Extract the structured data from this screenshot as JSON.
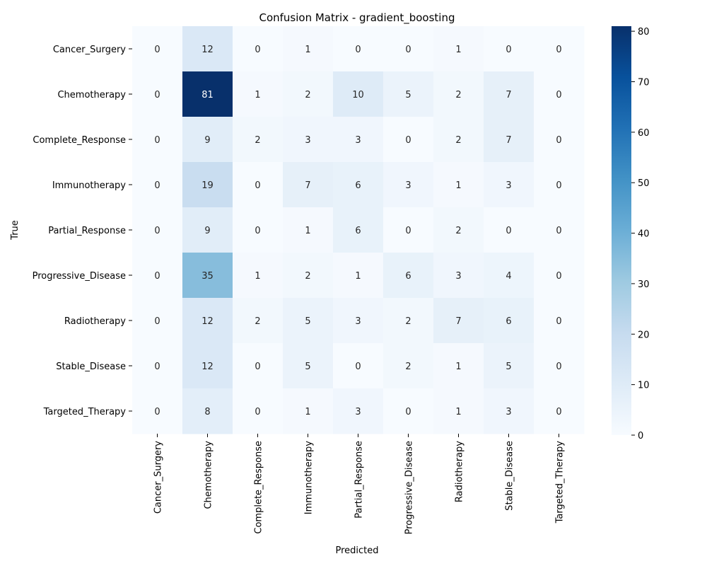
{
  "chart_data": {
    "type": "heatmap",
    "title": "Confusion Matrix - gradient_boosting",
    "xlabel": "Predicted",
    "ylabel": "True",
    "x_categories": [
      "Cancer_Surgery",
      "Chemotherapy",
      "Complete_Response",
      "Immunotherapy",
      "Partial_Response",
      "Progressive_Disease",
      "Radiotherapy",
      "Stable_Disease",
      "Targeted_Therapy"
    ],
    "y_categories": [
      "Cancer_Surgery",
      "Chemotherapy",
      "Complete_Response",
      "Immunotherapy",
      "Partial_Response",
      "Progressive_Disease",
      "Radiotherapy",
      "Stable_Disease",
      "Targeted_Therapy"
    ],
    "values": [
      [
        0,
        12,
        0,
        1,
        0,
        0,
        1,
        0,
        0
      ],
      [
        0,
        81,
        1,
        2,
        10,
        5,
        2,
        7,
        0
      ],
      [
        0,
        9,
        2,
        3,
        3,
        0,
        2,
        7,
        0
      ],
      [
        0,
        19,
        0,
        7,
        6,
        3,
        1,
        3,
        0
      ],
      [
        0,
        9,
        0,
        1,
        6,
        0,
        2,
        0,
        0
      ],
      [
        0,
        35,
        1,
        2,
        1,
        6,
        3,
        4,
        0
      ],
      [
        0,
        12,
        2,
        5,
        3,
        2,
        7,
        6,
        0
      ],
      [
        0,
        12,
        0,
        5,
        0,
        2,
        1,
        5,
        0
      ],
      [
        0,
        8,
        0,
        1,
        3,
        0,
        1,
        3,
        0
      ]
    ],
    "colorscale": "Blues",
    "colorbar": {
      "ticks": [
        "0",
        "10",
        "20",
        "30",
        "40",
        "50",
        "60",
        "70",
        "80"
      ],
      "range": [
        0,
        81
      ]
    }
  }
}
